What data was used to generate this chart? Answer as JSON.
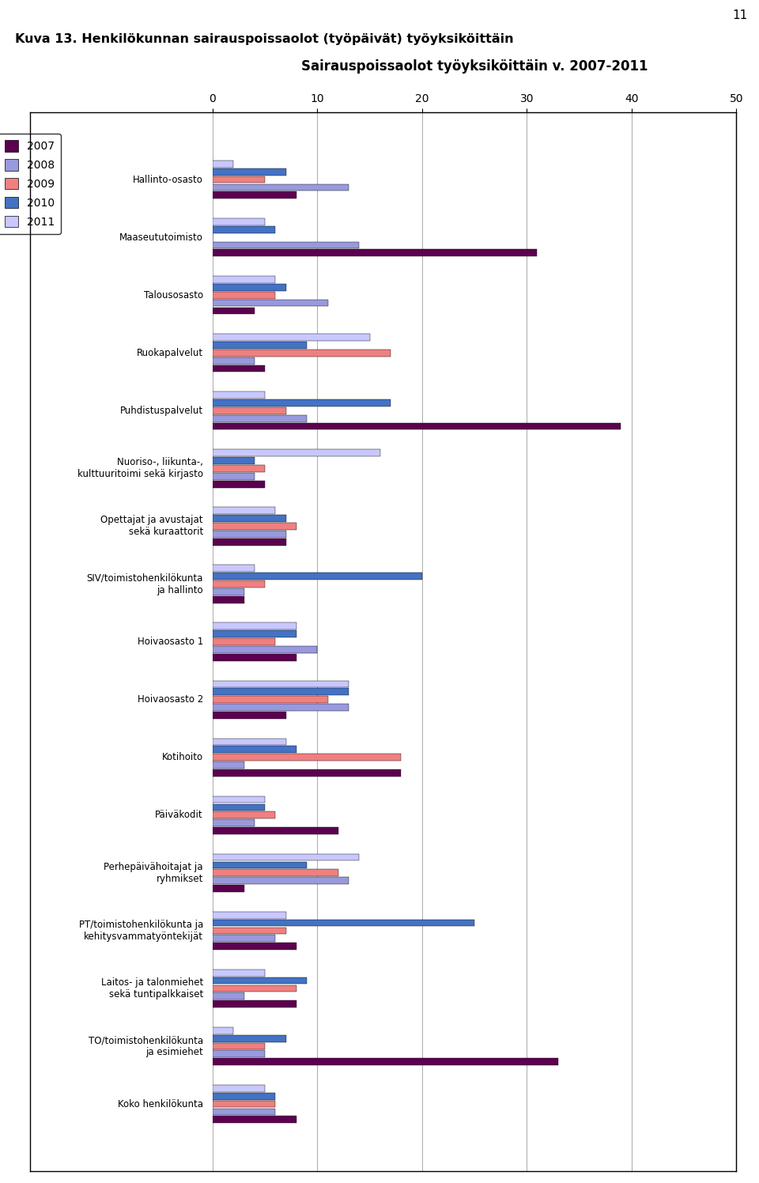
{
  "title_main": "Kuva 13. Henkilökunnan sairauspoissaolot (työpäivät) työyksiköittäin",
  "chart_title": "Sairauspoissaolot työyksiköittäin v. 2007-2011",
  "page_number": "11",
  "categories": [
    "Hallinto-osasto",
    "Maaseututoimisto",
    "Talousosasto",
    "Ruokapalvelut",
    "Puhdistuspalvelut",
    "Nuoriso-, liikunta-,\nkulttuuritoimi sekä kirjasto",
    "Opettajat ja avustajat\nsekä kuraattorit",
    "SIV/toimistohenkilökunta\nja hallinto",
    "Hoivaosasto 1",
    "Hoivaosasto 2",
    "Kotihoito",
    "Päiväkodit",
    "Perhepäivähoitajat ja\nryhmikset",
    "PT/toimistohenkilökunta ja\nkehitysvammatyöntekijät",
    "Laitos- ja talonmiehet\nsekä tuntipalkkaiset",
    "TO/toimistohenkilökunta\nja esimiehet",
    "Koko henkilökunta"
  ],
  "years": [
    "2007",
    "2008",
    "2009",
    "2010",
    "2011"
  ],
  "colors": [
    "#5C0050",
    "#9999DD",
    "#F08080",
    "#4472C4",
    "#C8C8FF"
  ],
  "data_2007": [
    8,
    31,
    4,
    5,
    39,
    5,
    7,
    3,
    8,
    7,
    18,
    12,
    3,
    8,
    8,
    33,
    8
  ],
  "data_2008": [
    13,
    14,
    11,
    4,
    9,
    4,
    7,
    3,
    10,
    13,
    3,
    4,
    13,
    6,
    3,
    5,
    6
  ],
  "data_2009": [
    5,
    0,
    6,
    17,
    7,
    5,
    8,
    5,
    6,
    11,
    18,
    6,
    12,
    7,
    8,
    5,
    6
  ],
  "data_2010": [
    7,
    6,
    7,
    9,
    17,
    4,
    7,
    20,
    8,
    13,
    8,
    5,
    9,
    25,
    9,
    7,
    6
  ],
  "data_2011": [
    2,
    5,
    6,
    15,
    5,
    16,
    6,
    4,
    8,
    13,
    7,
    5,
    14,
    7,
    5,
    2,
    5
  ],
  "xlim": [
    0,
    50
  ],
  "xticks": [
    0,
    10,
    20,
    30,
    40,
    50
  ]
}
